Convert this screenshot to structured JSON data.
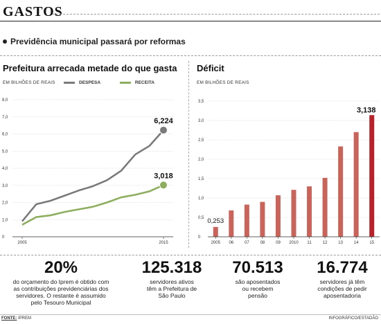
{
  "header": {
    "title": "GASTOS",
    "headline": "Previdência municipal passará por reformas"
  },
  "left_panel": {
    "title": "Prefeitura arrecada metade do que gasta",
    "subtitle": "EM BILHÕES DE REAIS",
    "legend": [
      "DESPESA",
      "RECEITA"
    ]
  },
  "right_panel": {
    "title": "Déficit",
    "subtitle": "EM BILHÕES DE REAIS"
  },
  "colors": {
    "despesa": "#7a7a7a",
    "receita": "#8cae5e",
    "bars": "#c8645a",
    "last_bar": "#b8222b",
    "grid": "#cccccc"
  },
  "chart_data": [
    {
      "type": "line",
      "title": "Prefeitura arrecada metade do que gasta",
      "ylabel": "EM BILHÕES DE REAIS",
      "ylim": [
        0,
        8
      ],
      "yticks": [
        "0",
        "1,0",
        "2,0",
        "3,0",
        "4,0",
        "5,0",
        "6,0",
        "7,0",
        "8,0"
      ],
      "ytick_values": [
        0,
        1,
        2,
        3,
        4,
        5,
        6,
        7,
        8
      ],
      "x": [
        2005,
        2006,
        2007,
        2008,
        2009,
        2010,
        2011,
        2012,
        2013,
        2014,
        2015
      ],
      "xticks": [
        "2005",
        "2015"
      ],
      "xtick_values": [
        2005,
        2015
      ],
      "grid": "horizontal",
      "series": [
        {
          "name": "DESPESA",
          "values": [
            0.9,
            1.9,
            2.1,
            2.4,
            2.7,
            2.95,
            3.3,
            3.85,
            4.8,
            5.3,
            6.224
          ]
        },
        {
          "name": "RECEITA",
          "values": [
            0.7,
            1.15,
            1.25,
            1.45,
            1.6,
            1.75,
            2.0,
            2.3,
            2.45,
            2.65,
            3.018
          ]
        }
      ],
      "annotations": [
        {
          "series": "DESPESA",
          "x": 2015,
          "label": "6,224"
        },
        {
          "series": "RECEITA",
          "x": 2015,
          "label": "3,018"
        }
      ]
    },
    {
      "type": "bar",
      "title": "Déficit",
      "ylabel": "EM BILHÕES DE REAIS",
      "ylim": [
        0,
        3.5
      ],
      "yticks": [
        "0",
        "0,5",
        "1,0",
        "1,5",
        "2,0",
        "2,5",
        "3,0",
        "3,5"
      ],
      "ytick_values": [
        0,
        0.5,
        1,
        1.5,
        2,
        2.5,
        3,
        3.5
      ],
      "categories": [
        "2005",
        "06",
        "07",
        "08",
        "09",
        "2010",
        "11",
        "12",
        "13",
        "14",
        "15"
      ],
      "values": [
        0.253,
        0.68,
        0.83,
        0.9,
        1.07,
        1.21,
        1.3,
        1.52,
        2.33,
        2.7,
        3.138
      ],
      "grid": "horizontal",
      "annotations": [
        {
          "index": 0,
          "label": "0,253"
        },
        {
          "index": 10,
          "label": "3,138"
        }
      ]
    }
  ],
  "stats": [
    {
      "value": "20%",
      "text": "do orçamento do Iprem é obtido com\nas contribuições previdenciárias dos\nservidores. O restante é assumido\npelo Tesouro Municipal"
    },
    {
      "value": "125.318",
      "text": "servidores ativos\ntêm a Prefeitura de\nSão Paulo"
    },
    {
      "value": "70.513",
      "text": "são aposentados\nou recebem\npensão"
    },
    {
      "value": "16.774",
      "text": "servidores já têm\ncondições de pedir\naposentadoria"
    }
  ],
  "footer": {
    "source_label": "FONTE:",
    "source": "IPREM",
    "credit": "INFOGRÁFICO/ESTADÃO"
  }
}
